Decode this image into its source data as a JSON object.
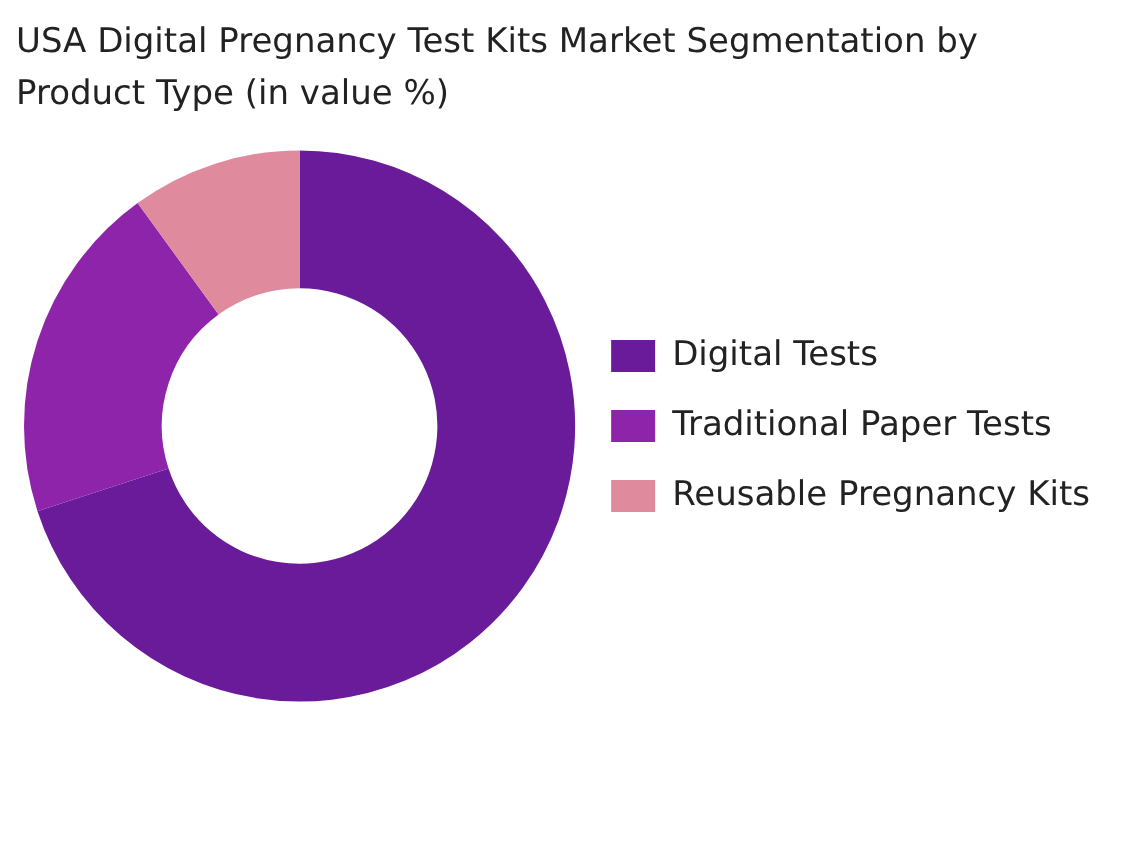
{
  "chart_data": {
    "type": "donut",
    "title": "USA Digital Pregnancy Test Kits Market Segmentation by Product Type (in value %)",
    "categories": [
      "Digital Tests",
      "Traditional Paper Tests",
      "Reusable Pregnancy Kits"
    ],
    "values": [
      70,
      20,
      10
    ],
    "colors": [
      "#6a1b9a",
      "#8e24aa",
      "#e08a9e"
    ],
    "legend": "right"
  }
}
